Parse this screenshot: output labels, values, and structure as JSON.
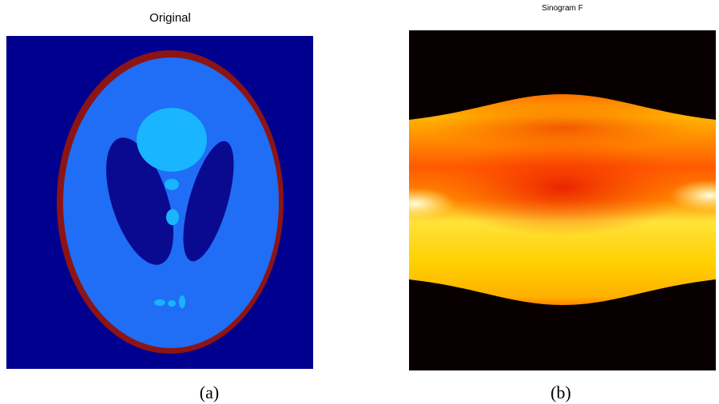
{
  "panels": [
    {
      "title": "Original",
      "caption": "(a)"
    },
    {
      "title": "Sinogram F",
      "caption": "(b)"
    }
  ]
}
